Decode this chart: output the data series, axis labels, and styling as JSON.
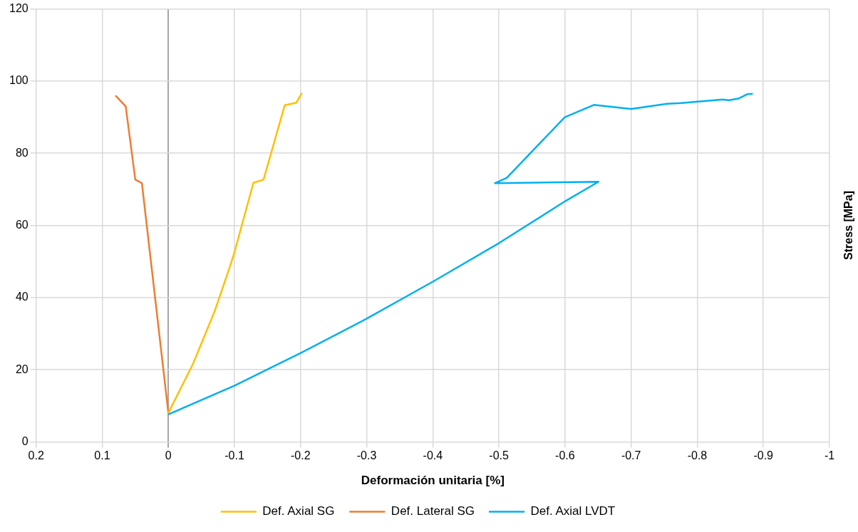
{
  "chart_data": {
    "type": "line",
    "xlabel": "Deformación unitaria [%]",
    "ylabel": "Stress [MPa]",
    "xlim": [
      0.2,
      -1
    ],
    "xticks": [
      0.2,
      0.1,
      0,
      -0.1,
      -0.2,
      -0.3,
      -0.4,
      -0.5,
      -0.6,
      -0.7,
      -0.8,
      -0.9,
      -1
    ],
    "ylim": [
      0,
      120
    ],
    "yticks": [
      0,
      20,
      40,
      60,
      80,
      100,
      120
    ],
    "grid": true,
    "legend": "bottom",
    "marker": "none",
    "line_style": "solid",
    "series": [
      {
        "name": "Def. Axial SG",
        "color": "#ffc000",
        "x": [
          0,
          -0.0375,
          -0.07,
          -0.092,
          -0.0995,
          -0.1286,
          -0.144,
          -0.176,
          -0.1934,
          -0.202
        ],
        "values": [
          8,
          21.7,
          36.2,
          48,
          52.2,
          71.8,
          72.7,
          93.3,
          94,
          96.7
        ]
      },
      {
        "name": "Def. Lateral SG",
        "color": "#ed7d31",
        "x": [
          0.08,
          0.0645,
          0.05,
          0.04,
          0
        ],
        "values": [
          96,
          93,
          72.7,
          71.7,
          8
        ]
      },
      {
        "name": "Def. Axial LVDT",
        "color": "#00b0f0",
        "x": [
          0,
          -0.1004,
          -0.2008,
          -0.3005,
          -0.401,
          -0.501,
          -0.601,
          -0.6505,
          -0.494,
          -0.512,
          -0.5996,
          -0.6435,
          -0.7,
          -0.754,
          -0.775,
          -0.838,
          -0.848,
          -0.863,
          -0.876,
          -0.884
        ],
        "values": [
          7.6,
          15.6,
          24.7,
          34.2,
          44.5,
          55.2,
          66.8,
          72.1,
          71.7,
          73.2,
          90,
          93.4,
          92.3,
          93.7,
          93.9,
          94.9,
          94.7,
          95.2,
          96.4,
          96.5
        ]
      }
    ]
  }
}
